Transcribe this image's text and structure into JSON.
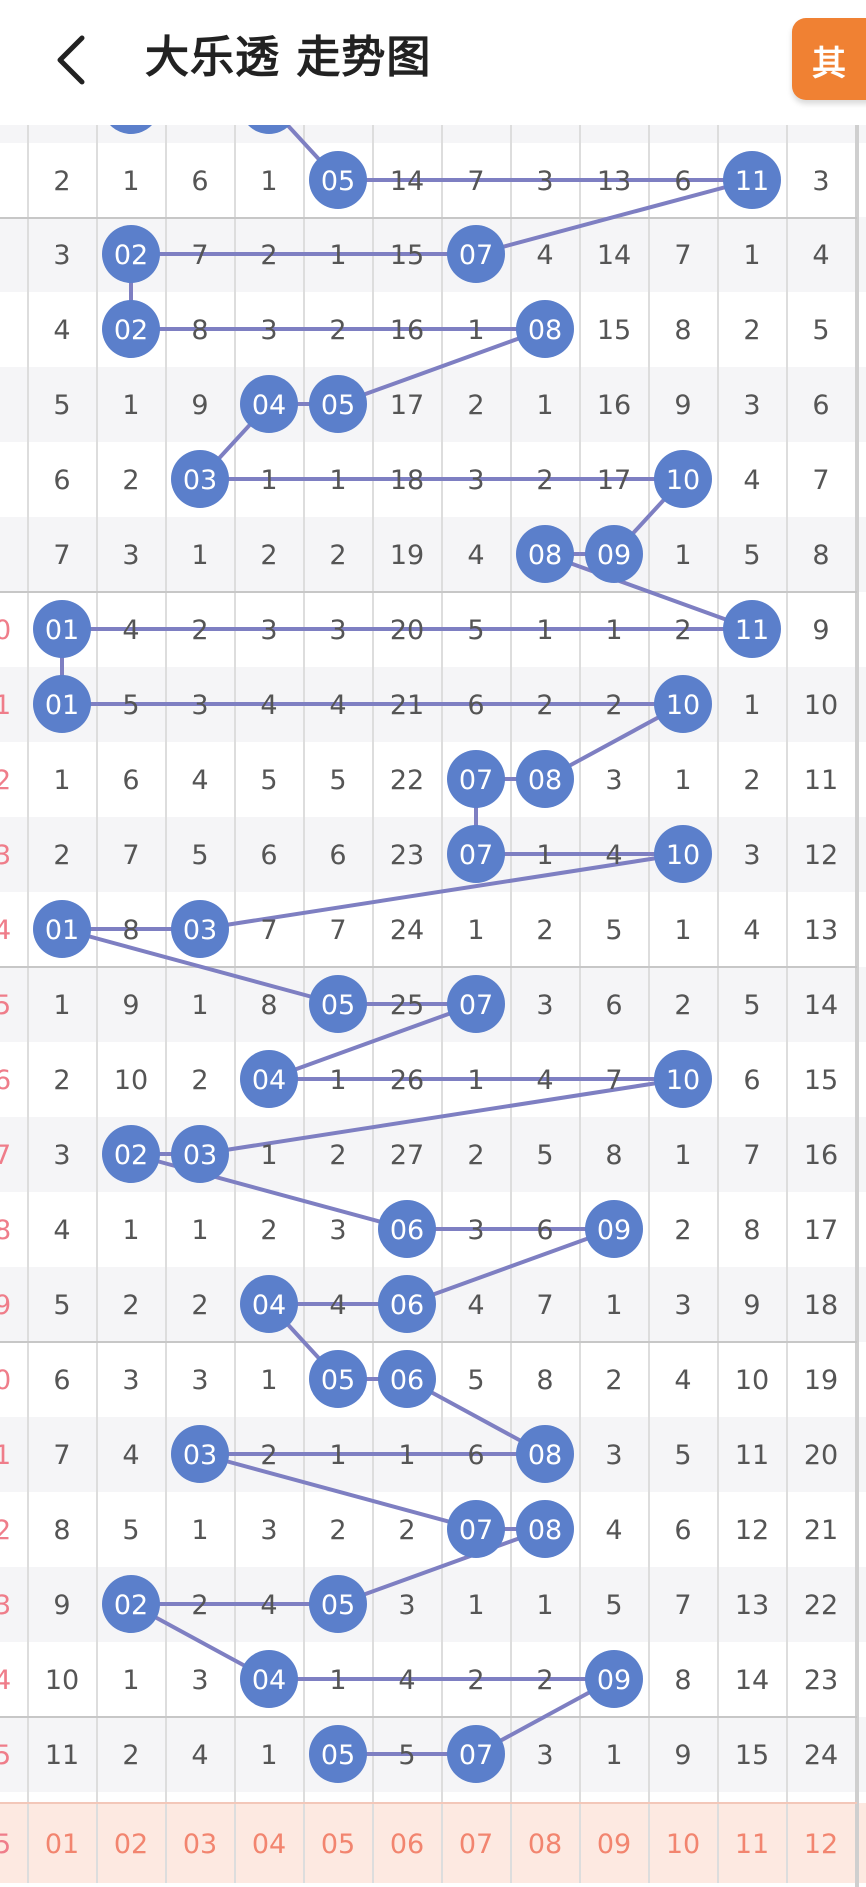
{
  "header": {
    "title": "大乐透 走势图",
    "action_label": "其"
  },
  "colors": {
    "ball": "#5b7fcb",
    "line": "#7e7fc2",
    "row_alt": "#f5f5f7",
    "footer_bg": "#fde9e1",
    "footer_text": "#f2856f",
    "edge_label": "#ef7d8a"
  },
  "footer_numbers": [
    "01",
    "02",
    "03",
    "04",
    "05",
    "06",
    "07",
    "08",
    "09",
    "10",
    "11",
    "12"
  ],
  "footer_edge": "5",
  "top_row": {
    "edge": "",
    "cells": [
      "2",
      "1",
      "6",
      "1",
      "05",
      "14",
      "7",
      "3",
      "13",
      "6",
      "11",
      "3"
    ]
  },
  "rows": [
    {
      "edge": "",
      "cells": [
        "3",
        "02",
        "7",
        "2",
        "1",
        "15",
        "07",
        "4",
        "14",
        "7",
        "1",
        "4"
      ]
    },
    {
      "edge": "",
      "cells": [
        "4",
        "02",
        "8",
        "3",
        "2",
        "16",
        "1",
        "08",
        "15",
        "8",
        "2",
        "5"
      ]
    },
    {
      "edge": "",
      "cells": [
        "5",
        "1",
        "9",
        "04",
        "05",
        "17",
        "2",
        "1",
        "16",
        "9",
        "3",
        "6"
      ]
    },
    {
      "edge": "",
      "cells": [
        "6",
        "2",
        "03",
        "1",
        "1",
        "18",
        "3",
        "2",
        "17",
        "10",
        "4",
        "7"
      ]
    },
    {
      "edge": "",
      "cells": [
        "7",
        "3",
        "1",
        "2",
        "2",
        "19",
        "4",
        "08",
        "09",
        "1",
        "5",
        "8"
      ]
    },
    {
      "edge": "0",
      "cells": [
        "01",
        "4",
        "2",
        "3",
        "3",
        "20",
        "5",
        "1",
        "1",
        "2",
        "11",
        "9"
      ]
    },
    {
      "edge": "1",
      "cells": [
        "01",
        "5",
        "3",
        "4",
        "4",
        "21",
        "6",
        "2",
        "2",
        "10",
        "1",
        "10"
      ]
    },
    {
      "edge": "2",
      "cells": [
        "1",
        "6",
        "4",
        "5",
        "5",
        "22",
        "07",
        "08",
        "3",
        "1",
        "2",
        "11"
      ]
    },
    {
      "edge": "3",
      "cells": [
        "2",
        "7",
        "5",
        "6",
        "6",
        "23",
        "07",
        "1",
        "4",
        "10",
        "3",
        "12"
      ]
    },
    {
      "edge": "4",
      "cells": [
        "01",
        "8",
        "03",
        "7",
        "7",
        "24",
        "1",
        "2",
        "5",
        "1",
        "4",
        "13"
      ]
    },
    {
      "edge": "5",
      "cells": [
        "1",
        "9",
        "1",
        "8",
        "05",
        "25",
        "07",
        "3",
        "6",
        "2",
        "5",
        "14"
      ]
    },
    {
      "edge": "6",
      "cells": [
        "2",
        "10",
        "2",
        "04",
        "1",
        "26",
        "1",
        "4",
        "7",
        "10",
        "6",
        "15"
      ]
    },
    {
      "edge": "7",
      "cells": [
        "3",
        "02",
        "03",
        "1",
        "2",
        "27",
        "2",
        "5",
        "8",
        "1",
        "7",
        "16"
      ]
    },
    {
      "edge": "8",
      "cells": [
        "4",
        "1",
        "1",
        "2",
        "3",
        "06",
        "3",
        "6",
        "09",
        "2",
        "8",
        "17"
      ]
    },
    {
      "edge": "9",
      "cells": [
        "5",
        "2",
        "2",
        "04",
        "4",
        "06",
        "4",
        "7",
        "1",
        "3",
        "9",
        "18"
      ]
    },
    {
      "edge": "0",
      "cells": [
        "6",
        "3",
        "3",
        "1",
        "05",
        "06",
        "5",
        "8",
        "2",
        "4",
        "10",
        "19"
      ]
    },
    {
      "edge": "1",
      "cells": [
        "7",
        "4",
        "03",
        "2",
        "1",
        "1",
        "6",
        "08",
        "3",
        "5",
        "11",
        "20"
      ]
    },
    {
      "edge": "2",
      "cells": [
        "8",
        "5",
        "1",
        "3",
        "2",
        "2",
        "07",
        "08",
        "4",
        "6",
        "12",
        "21"
      ]
    },
    {
      "edge": "3",
      "cells": [
        "9",
        "02",
        "2",
        "4",
        "05",
        "3",
        "1",
        "1",
        "5",
        "7",
        "13",
        "22"
      ]
    },
    {
      "edge": "4",
      "cells": [
        "10",
        "1",
        "3",
        "04",
        "1",
        "4",
        "2",
        "2",
        "09",
        "8",
        "14",
        "23"
      ]
    },
    {
      "edge": "5",
      "cells": [
        "11",
        "2",
        "4",
        "1",
        "05",
        "5",
        "07",
        "3",
        "1",
        "9",
        "15",
        "24"
      ]
    }
  ],
  "hit_cols": {
    "top": [
      4,
      10
    ],
    "rows": [
      [
        1,
        6
      ],
      [
        1,
        7
      ],
      [
        3,
        4
      ],
      [
        2,
        9
      ],
      [
        7,
        8
      ],
      [
        0,
        10
      ],
      [
        0,
        9
      ],
      [
        6,
        7
      ],
      [
        6,
        9
      ],
      [
        0,
        2
      ],
      [
        4,
        6
      ],
      [
        3,
        9
      ],
      [
        1,
        2
      ],
      [
        5,
        8
      ],
      [
        3,
        5
      ],
      [
        4,
        5
      ],
      [
        2,
        7
      ],
      [
        6,
        7
      ],
      [
        1,
        4
      ],
      [
        3,
        8
      ],
      [
        4,
        6
      ]
    ]
  },
  "prev_row_hits": [
    1,
    3
  ]
}
